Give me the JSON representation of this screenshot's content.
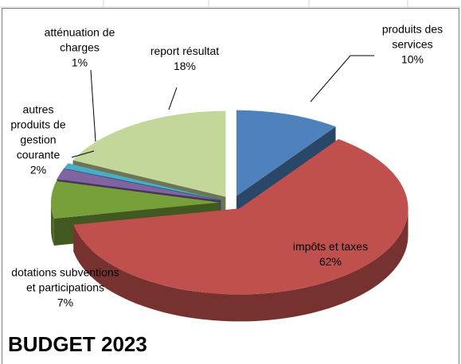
{
  "chart_data": {
    "type": "pie",
    "title": "BUDGET 2023",
    "categories": [
      "produits des services",
      "impôts et taxes",
      "dotations subventions et participations",
      "autres produits de gestion courante",
      "atténuation de charges",
      "report résultat"
    ],
    "values": [
      10,
      62,
      7,
      2,
      1,
      18
    ],
    "value_labels": [
      "10%",
      "62%",
      "7%",
      "2%",
      "1%",
      "18%"
    ],
    "colors": [
      "#4f81bd",
      "#c0504d",
      "#77a03a",
      "#8064a2",
      "#4bacc6",
      "#c4d79b"
    ]
  }
}
